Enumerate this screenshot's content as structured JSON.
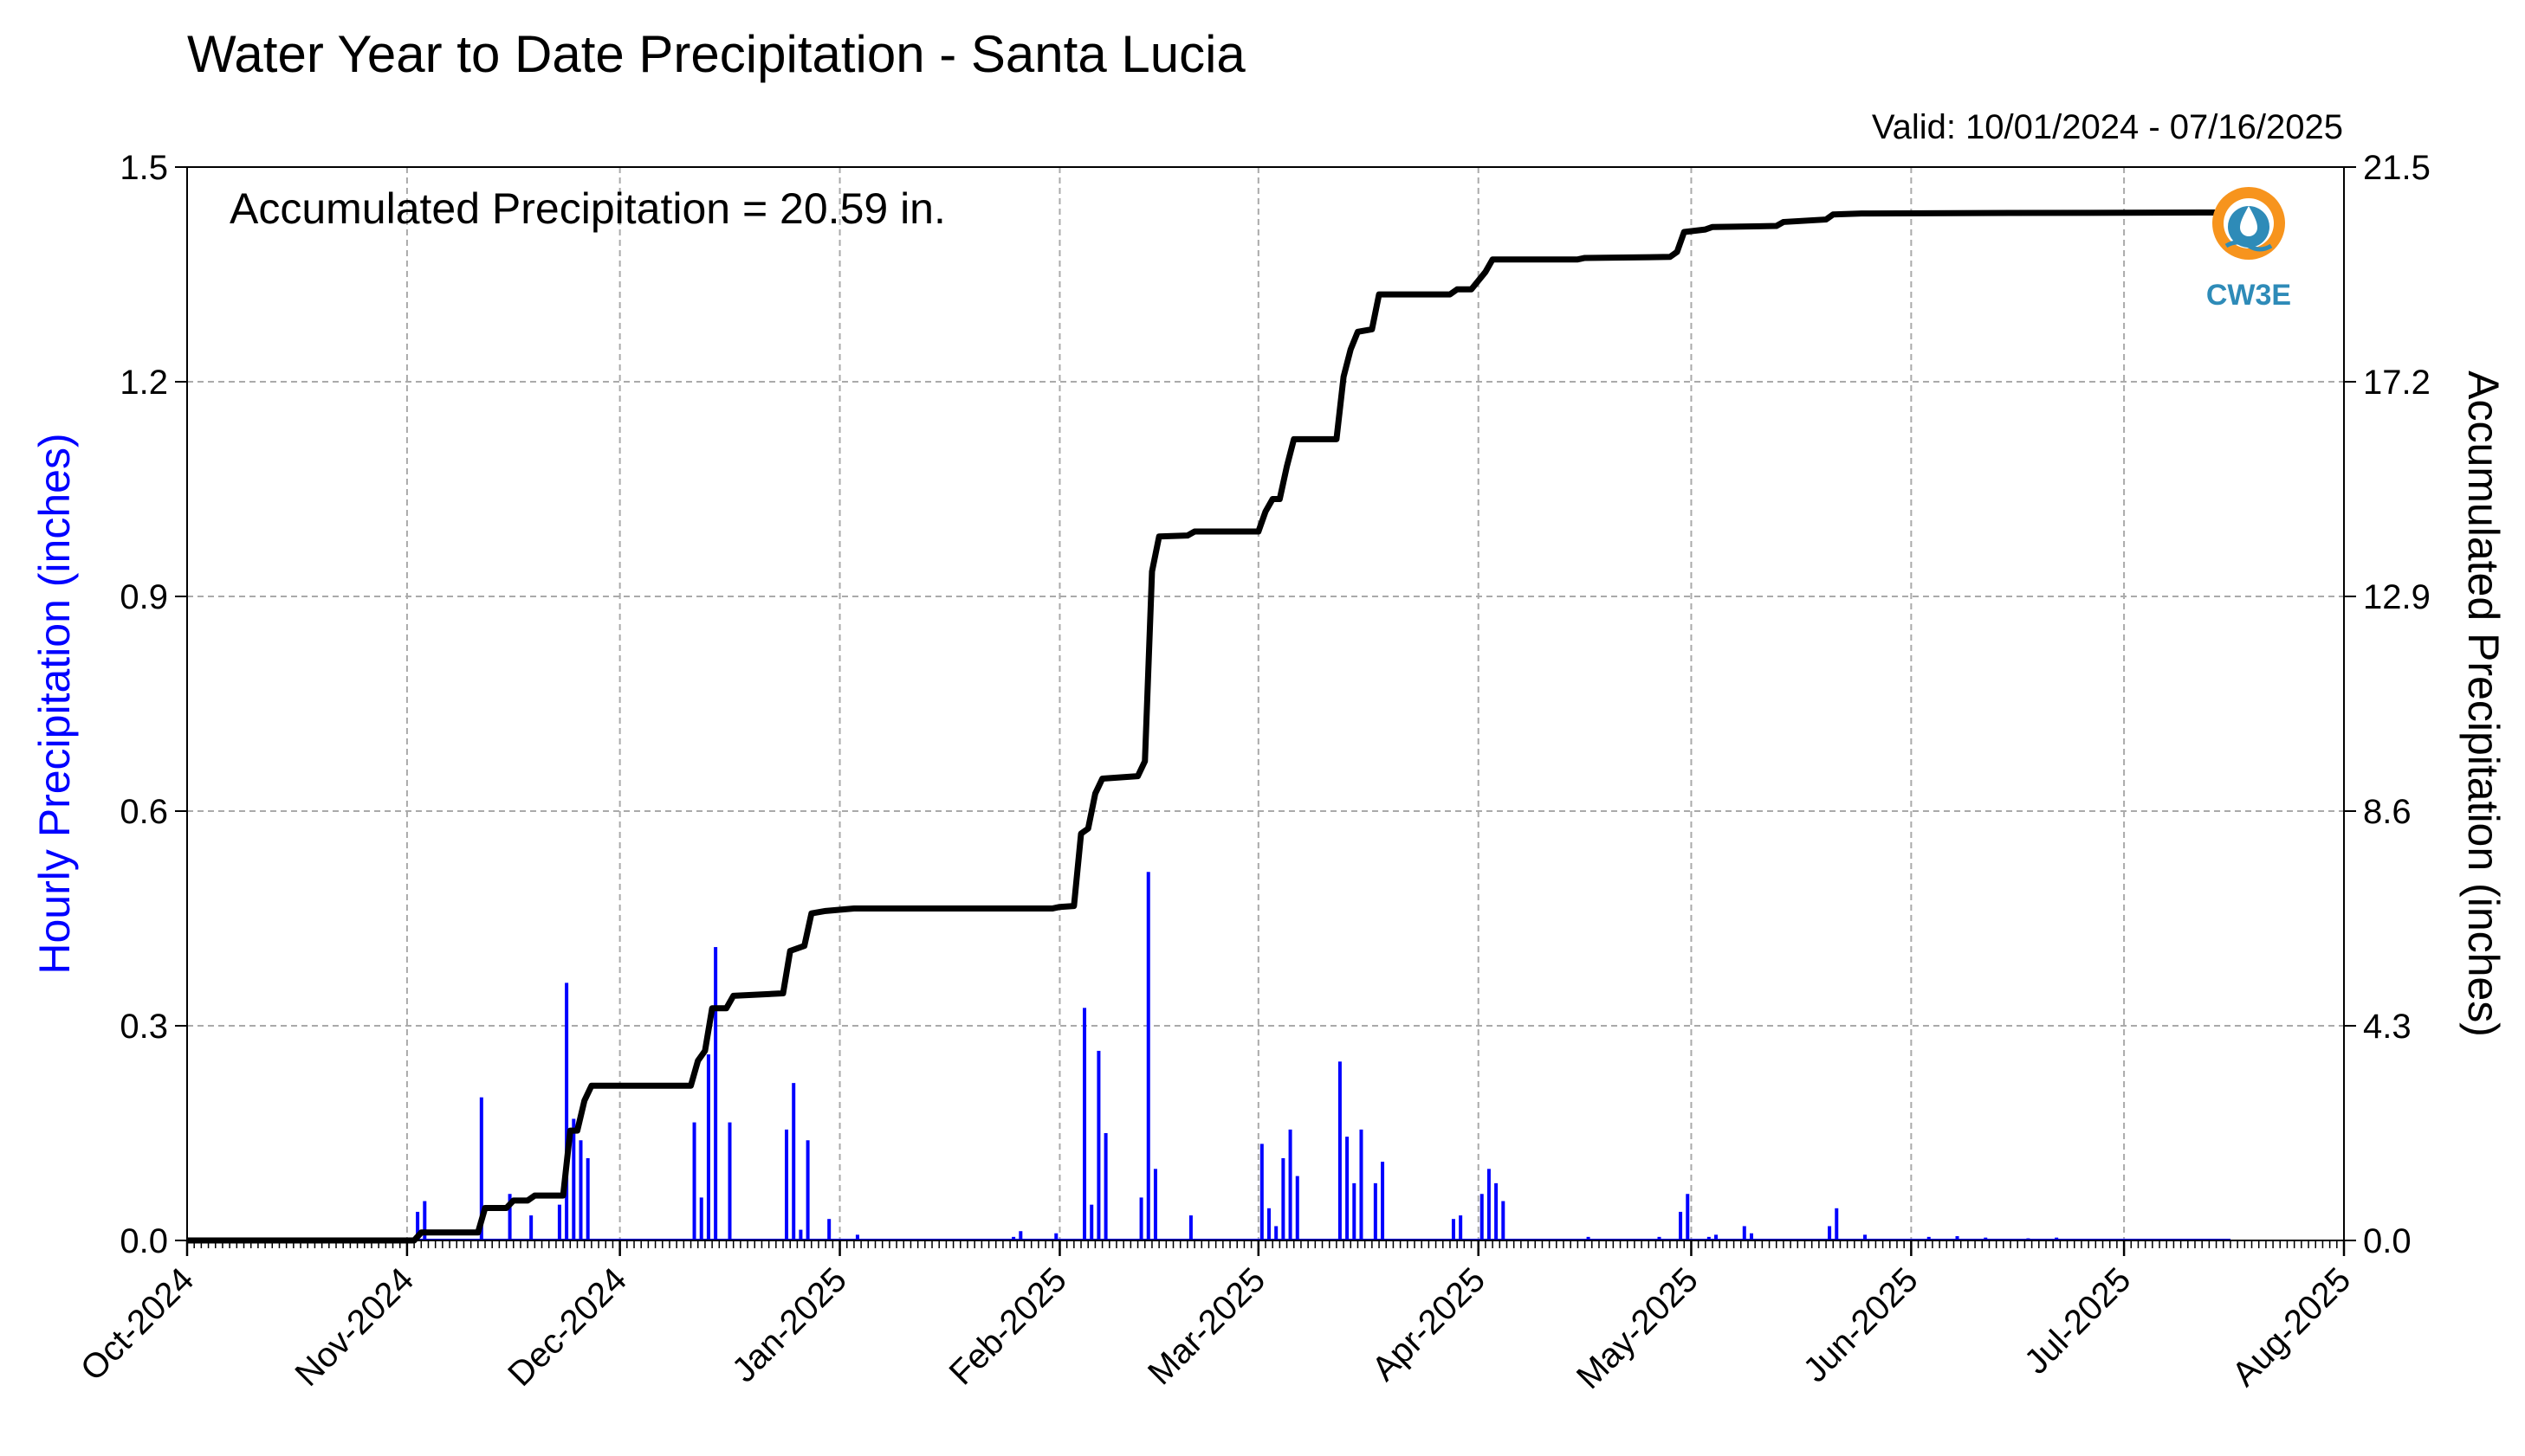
{
  "chart_data": {
    "type": "bar+line",
    "title": "Water Year to Date Precipitation - Santa Lucia",
    "valid_label": "Valid: 10/01/2024 - 07/16/2025",
    "annotation": "Accumulated Precipitation = 20.59 in.",
    "ylabel_left": "Hourly Precipitation (inches)",
    "ylabel_right": "Accumulated Precipitation (inches)",
    "ylim_left": [
      0,
      1.5
    ],
    "ylim_right": [
      0,
      21.5
    ],
    "yticks_left": [
      "0.0",
      "0.3",
      "0.6",
      "0.9",
      "1.2",
      "1.5"
    ],
    "yticks_right": [
      "0.0",
      "4.3",
      "8.6",
      "12.9",
      "17.2",
      "21.5"
    ],
    "xlim": [
      "2024-10-01",
      "2025-08-01"
    ],
    "xticks": [
      {
        "date": "2024-10-01",
        "label": "Oct-2024"
      },
      {
        "date": "2024-11-01",
        "label": "Nov-2024"
      },
      {
        "date": "2024-12-01",
        "label": "Dec-2024"
      },
      {
        "date": "2025-01-01",
        "label": "Jan-2025"
      },
      {
        "date": "2025-02-01",
        "label": "Feb-2025"
      },
      {
        "date": "2025-03-01",
        "label": "Mar-2025"
      },
      {
        "date": "2025-04-01",
        "label": "Apr-2025"
      },
      {
        "date": "2025-05-01",
        "label": "May-2025"
      },
      {
        "date": "2025-06-01",
        "label": "Jun-2025"
      },
      {
        "date": "2025-07-01",
        "label": "Jul-2025"
      },
      {
        "date": "2025-08-01",
        "label": "Aug-2025"
      }
    ],
    "grid": true,
    "hourly_series": {
      "name": "Hourly Precipitation (inches)",
      "color": "#0000ff",
      "points": [
        [
          "2024-11-02",
          0.04
        ],
        [
          "2024-11-03",
          0.055
        ],
        [
          "2024-11-11",
          0.2
        ],
        [
          "2024-11-15",
          0.065
        ],
        [
          "2024-11-18",
          0.035
        ],
        [
          "2024-11-22",
          0.05
        ],
        [
          "2024-11-23",
          0.36
        ],
        [
          "2024-11-24",
          0.17
        ],
        [
          "2024-11-25",
          0.14
        ],
        [
          "2024-11-26",
          0.115
        ],
        [
          "2024-12-11",
          0.165
        ],
        [
          "2024-12-12",
          0.06
        ],
        [
          "2024-12-13",
          0.26
        ],
        [
          "2024-12-14",
          0.41
        ],
        [
          "2024-12-16",
          0.165
        ],
        [
          "2024-12-24",
          0.155
        ],
        [
          "2024-12-25",
          0.22
        ],
        [
          "2024-12-26",
          0.015
        ],
        [
          "2024-12-27",
          0.14
        ],
        [
          "2024-12-30",
          0.03
        ],
        [
          "2025-01-03",
          0.008
        ],
        [
          "2025-01-25",
          0.005
        ],
        [
          "2025-01-26",
          0.013
        ],
        [
          "2025-01-31",
          0.01
        ],
        [
          "2025-02-04",
          0.325
        ],
        [
          "2025-02-05",
          0.05
        ],
        [
          "2025-02-06",
          0.265
        ],
        [
          "2025-02-07",
          0.15
        ],
        [
          "2025-02-12",
          0.06
        ],
        [
          "2025-02-13",
          0.515
        ],
        [
          "2025-02-14",
          0.1
        ],
        [
          "2025-02-19",
          0.035
        ],
        [
          "2025-03-01",
          0.135
        ],
        [
          "2025-03-02",
          0.045
        ],
        [
          "2025-03-03",
          0.02
        ],
        [
          "2025-03-04",
          0.115
        ],
        [
          "2025-03-05",
          0.155
        ],
        [
          "2025-03-06",
          0.09
        ],
        [
          "2025-03-12",
          0.25
        ],
        [
          "2025-03-13",
          0.145
        ],
        [
          "2025-03-14",
          0.08
        ],
        [
          "2025-03-15",
          0.155
        ],
        [
          "2025-03-17",
          0.08
        ],
        [
          "2025-03-18",
          0.11
        ],
        [
          "2025-03-28",
          0.03
        ],
        [
          "2025-03-29",
          0.035
        ],
        [
          "2025-04-01",
          0.065
        ],
        [
          "2025-04-02",
          0.1
        ],
        [
          "2025-04-03",
          0.08
        ],
        [
          "2025-04-04",
          0.055
        ],
        [
          "2025-04-16",
          0.005
        ],
        [
          "2025-04-26",
          0.005
        ],
        [
          "2025-04-29",
          0.04
        ],
        [
          "2025-04-30",
          0.065
        ],
        [
          "2025-05-03",
          0.005
        ],
        [
          "2025-05-04",
          0.008
        ],
        [
          "2025-05-08",
          0.02
        ],
        [
          "2025-05-09",
          0.01
        ],
        [
          "2025-05-20",
          0.02
        ],
        [
          "2025-05-21",
          0.045
        ],
        [
          "2025-05-25",
          0.008
        ],
        [
          "2025-06-03",
          0.005
        ],
        [
          "2025-06-07",
          0.006
        ],
        [
          "2025-06-11",
          0.004
        ],
        [
          "2025-06-17",
          0.003
        ],
        [
          "2025-06-21",
          0.004
        ]
      ]
    },
    "accumulated_series": {
      "name": "Accumulated Precipitation (inches)",
      "color": "#000000",
      "points": [
        [
          "2024-10-01",
          0
        ],
        [
          "2024-11-02",
          0
        ],
        [
          "2024-11-03",
          0.16
        ],
        [
          "2024-11-11",
          0.16
        ],
        [
          "2024-11-12",
          0.65
        ],
        [
          "2024-11-15",
          0.65
        ],
        [
          "2024-11-16",
          0.8
        ],
        [
          "2024-11-18",
          0.8
        ],
        [
          "2024-11-19",
          0.9
        ],
        [
          "2024-11-23",
          0.9
        ],
        [
          "2024-11-24",
          2.2
        ],
        [
          "2024-11-25",
          2.2
        ],
        [
          "2024-11-26",
          2.8
        ],
        [
          "2024-11-27",
          3.1
        ],
        [
          "2024-12-11",
          3.1
        ],
        [
          "2024-12-12",
          3.6
        ],
        [
          "2024-12-13",
          3.8
        ],
        [
          "2024-12-14",
          4.65
        ],
        [
          "2024-12-16",
          4.65
        ],
        [
          "2024-12-17",
          4.9
        ],
        [
          "2024-12-24",
          4.95
        ],
        [
          "2024-12-25",
          5.8
        ],
        [
          "2024-12-27",
          5.9
        ],
        [
          "2024-12-28",
          6.55
        ],
        [
          "2024-12-30",
          6.6
        ],
        [
          "2025-01-03",
          6.65
        ],
        [
          "2025-01-31",
          6.65
        ],
        [
          "2025-02-01",
          6.68
        ],
        [
          "2025-02-03",
          6.7
        ],
        [
          "2025-02-04",
          8.15
        ],
        [
          "2025-02-05",
          8.25
        ],
        [
          "2025-02-06",
          8.95
        ],
        [
          "2025-02-07",
          9.25
        ],
        [
          "2025-02-12",
          9.3
        ],
        [
          "2025-02-13",
          9.6
        ],
        [
          "2025-02-14",
          13.4
        ],
        [
          "2025-02-15",
          14.1
        ],
        [
          "2025-02-19",
          14.12
        ],
        [
          "2025-02-20",
          14.2
        ],
        [
          "2025-03-01",
          14.2
        ],
        [
          "2025-03-02",
          14.6
        ],
        [
          "2025-03-03",
          14.85
        ],
        [
          "2025-03-04",
          14.85
        ],
        [
          "2025-03-05",
          15.5
        ],
        [
          "2025-03-06",
          16.05
        ],
        [
          "2025-03-12",
          16.05
        ],
        [
          "2025-03-13",
          17.3
        ],
        [
          "2025-03-14",
          17.85
        ],
        [
          "2025-03-15",
          18.2
        ],
        [
          "2025-03-17",
          18.25
        ],
        [
          "2025-03-18",
          18.95
        ],
        [
          "2025-03-28",
          18.95
        ],
        [
          "2025-03-29",
          19.05
        ],
        [
          "2025-03-31",
          19.05
        ],
        [
          "2025-04-02",
          19.4
        ],
        [
          "2025-04-03",
          19.65
        ],
        [
          "2025-04-15",
          19.65
        ],
        [
          "2025-04-16",
          19.68
        ],
        [
          "2025-04-28",
          19.7
        ],
        [
          "2025-04-29",
          19.8
        ],
        [
          "2025-04-30",
          20.2
        ],
        [
          "2025-05-03",
          20.25
        ],
        [
          "2025-05-04",
          20.3
        ],
        [
          "2025-05-13",
          20.32
        ],
        [
          "2025-05-14",
          20.4
        ],
        [
          "2025-05-20",
          20.45
        ],
        [
          "2025-05-21",
          20.55
        ],
        [
          "2025-05-25",
          20.57
        ],
        [
          "2025-06-15",
          20.58
        ],
        [
          "2025-07-16",
          20.59
        ]
      ]
    },
    "logo_text": "CW3E"
  }
}
